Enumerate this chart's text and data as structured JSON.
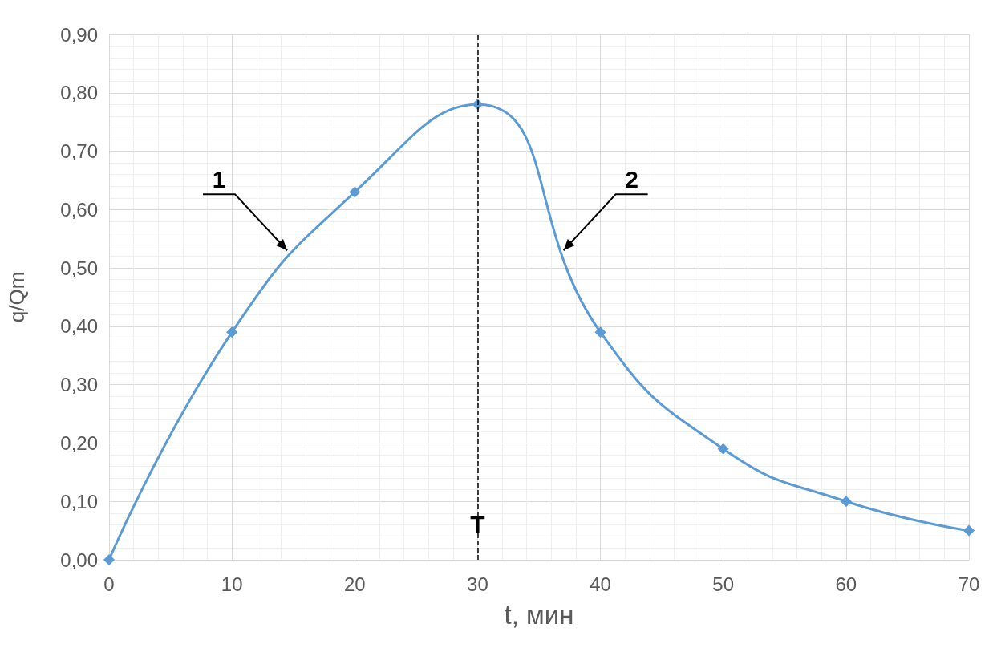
{
  "chart_data": {
    "type": "line",
    "xlabel": "t, мин",
    "ylabel": "q/Qm",
    "x": [
      0,
      10,
      20,
      30,
      40,
      50,
      60,
      70
    ],
    "series": [
      {
        "color": "#5b9bd5",
        "values": [
          0,
          0.39,
          0.63,
          0.78,
          0.39,
          0.19,
          0.1,
          0.05
        ]
      }
    ],
    "xlim": [
      0,
      70
    ],
    "xticks": [
      0,
      10,
      20,
      30,
      40,
      50,
      60,
      70
    ],
    "ylim": [
      0,
      0.9
    ],
    "yticks": [
      {
        "value": 0,
        "label": "0,00"
      },
      {
        "value": 0.1,
        "label": "0,10"
      },
      {
        "value": 0.2,
        "label": "0,20"
      },
      {
        "value": 0.3,
        "label": "0,30"
      },
      {
        "value": 0.4,
        "label": "0,40"
      },
      {
        "value": 0.5,
        "label": "0,50"
      },
      {
        "value": 0.6,
        "label": "0,60"
      },
      {
        "value": 0.7,
        "label": "0,70"
      },
      {
        "value": 0.8,
        "label": "0,80"
      },
      {
        "value": 0.9,
        "label": "0,90"
      }
    ],
    "grid": true,
    "marker": "diamond",
    "line_style": "solid",
    "ref_lines": [
      {
        "axis": "x",
        "value": 30,
        "label": "T",
        "color": "#000000",
        "line_style": "dashed"
      }
    ],
    "annotations": [
      {
        "text": "1",
        "x": 14.5,
        "y": 0.53
      },
      {
        "text": "2",
        "x": 37,
        "y": 0.53
      }
    ]
  }
}
